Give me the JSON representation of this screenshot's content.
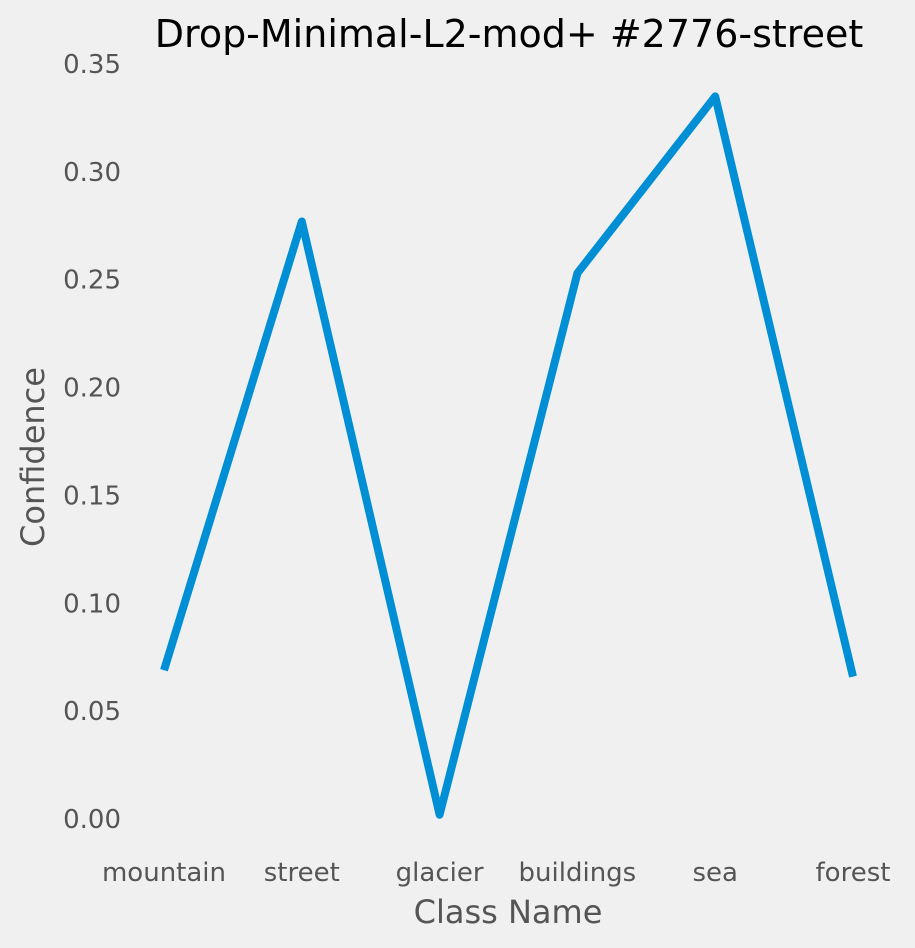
{
  "chart_data": {
    "type": "line",
    "title": "Drop-Minimal-L2-mod+ #2776-street",
    "xlabel": "Class Name",
    "ylabel": "Confidence",
    "categories": [
      "mountain",
      "street",
      "glacier",
      "buildings",
      "sea",
      "forest"
    ],
    "series": [
      {
        "values": [
          0.069,
          0.277,
          0.002,
          0.253,
          0.335,
          0.066
        ]
      }
    ],
    "yticks": [
      "0.00",
      "0.05",
      "0.10",
      "0.15",
      "0.20",
      "0.25",
      "0.30",
      "0.35"
    ],
    "ylim": [
      0,
      0.35
    ],
    "grid": false,
    "legend": "none",
    "colors": {
      "line": "#008fd5",
      "background": "#f0f0f0",
      "text": "#555555",
      "title": "#000000"
    }
  }
}
